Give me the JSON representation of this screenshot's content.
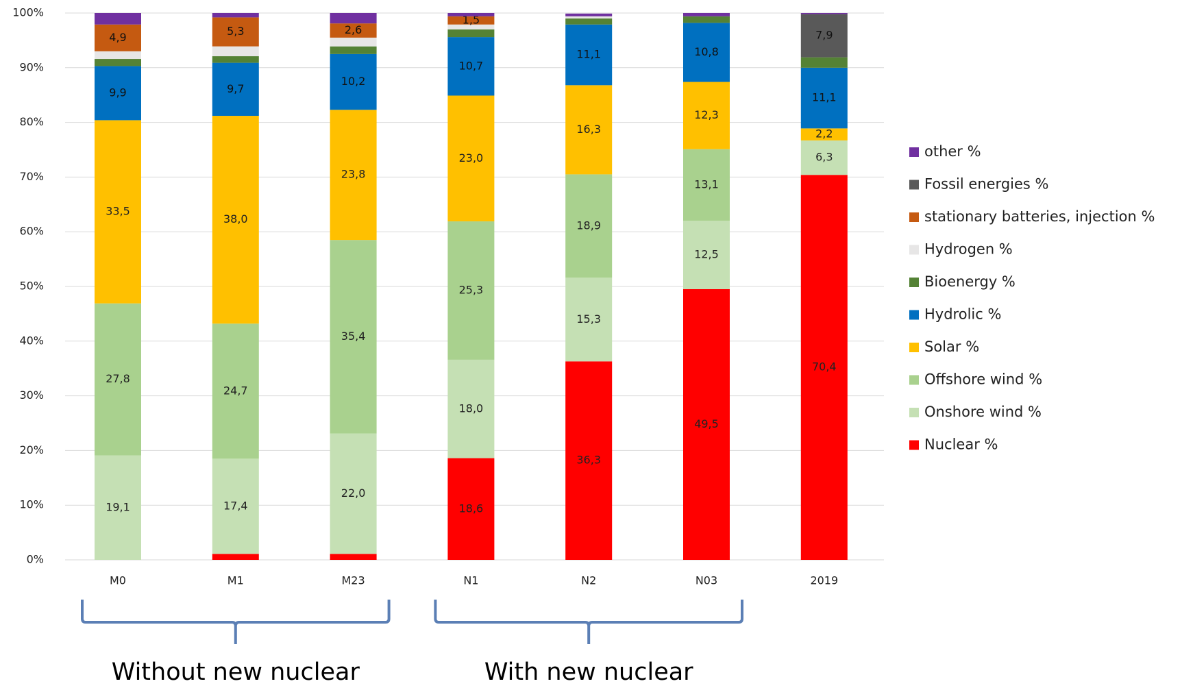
{
  "chart_data": {
    "type": "stacked_bar",
    "categories": [
      "M0",
      "M1",
      "M23",
      "N1",
      "N2",
      "N03",
      "2019"
    ],
    "ylim": [
      0,
      100
    ],
    "yticks": [
      {
        "value": 0,
        "label": "0%"
      },
      {
        "value": 10,
        "label": "10%"
      },
      {
        "value": 20,
        "label": "20%"
      },
      {
        "value": 30,
        "label": "30%"
      },
      {
        "value": 40,
        "label": "40%"
      },
      {
        "value": 50,
        "label": "50%"
      },
      {
        "value": 60,
        "label": "60%"
      },
      {
        "value": 70,
        "label": "70%"
      },
      {
        "value": 80,
        "label": "80%"
      },
      {
        "value": 90,
        "label": "90%"
      },
      {
        "value": 100,
        "label": "100%"
      }
    ],
    "grid": true,
    "legend": "right",
    "series": [
      {
        "name": "Nuclear %",
        "color": "#ff0000",
        "values": [
          0,
          1.1,
          1.1,
          18.6,
          36.3,
          49.5,
          70.4
        ],
        "value_labels": [
          null,
          null,
          null,
          "18,6",
          "36,3",
          "49,5",
          "70,4"
        ]
      },
      {
        "name": "Onshore wind %",
        "color": "#c5e0b4",
        "values": [
          19.1,
          17.4,
          22.0,
          18.0,
          15.3,
          12.5,
          6.3
        ],
        "value_labels": [
          "19,1",
          "17,4",
          "22,0",
          "18,0",
          "15,3",
          "12,5",
          "6,3"
        ]
      },
      {
        "name": "Offshore wind %",
        "color": "#a9d18e",
        "values": [
          27.8,
          24.7,
          35.4,
          25.3,
          18.9,
          13.1,
          0
        ],
        "value_labels": [
          "27,8",
          "24,7",
          "35,4",
          "25,3",
          "18,9",
          "13,1",
          null
        ]
      },
      {
        "name": "Solar %",
        "color": "#ffc000",
        "values": [
          33.5,
          38.0,
          23.8,
          23.0,
          16.3,
          12.3,
          2.2
        ],
        "value_labels": [
          "33,5",
          "38,0",
          "23,8",
          "23,0",
          "16,3",
          "12,3",
          "2,2"
        ]
      },
      {
        "name": "Hydrolic %",
        "color": "#0070c0",
        "values": [
          9.9,
          9.7,
          10.2,
          10.7,
          11.1,
          10.8,
          11.1
        ],
        "value_labels": [
          "9,9",
          "9,7",
          "10,2",
          "10,7",
          "11,1",
          "10,8",
          "11,1"
        ]
      },
      {
        "name": "Bioenergy %",
        "color": "#548235",
        "values": [
          1.3,
          1.2,
          1.4,
          1.4,
          1.1,
          1.2,
          1.9
        ],
        "value_labels": [
          null,
          null,
          null,
          null,
          null,
          null,
          null
        ]
      },
      {
        "name": "Hydrogen %",
        "color": "#e7e6e6",
        "values": [
          1.4,
          1.8,
          1.6,
          0.9,
          0.4,
          0,
          0
        ],
        "value_labels": [
          null,
          null,
          null,
          null,
          null,
          null,
          null
        ]
      },
      {
        "name": "stationary batteries, injection %",
        "color": "#c55a11",
        "values": [
          4.9,
          5.3,
          2.6,
          1.5,
          0,
          0,
          0
        ],
        "value_labels": [
          "4,9",
          "5,3",
          "2,6",
          "1,5",
          null,
          null,
          null
        ]
      },
      {
        "name": "Fossil energies %",
        "color": "#595959",
        "values": [
          0,
          0,
          0,
          0,
          0,
          0,
          7.9
        ],
        "value_labels": [
          null,
          null,
          null,
          null,
          null,
          null,
          "7,9"
        ]
      },
      {
        "name": "other %",
        "color": "#7030a0",
        "values": [
          2.1,
          0.8,
          1.9,
          0.6,
          0.5,
          0.6,
          0.2
        ],
        "value_labels": [
          null,
          null,
          null,
          null,
          null,
          null,
          null
        ]
      }
    ],
    "annotations": [
      "Without new nuclear",
      "With new nuclear"
    ]
  }
}
